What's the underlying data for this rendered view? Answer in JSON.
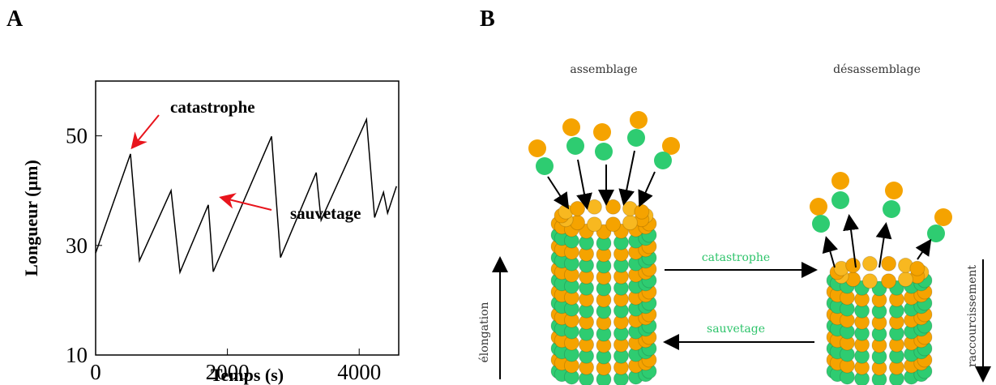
{
  "panel_labels": [
    "A",
    "B"
  ],
  "chart_data": {
    "type": "line",
    "x": [
      0,
      529,
      665,
      1145,
      1280,
      1710,
      1785,
      2670,
      2806,
      3348,
      3422,
      4111,
      4234,
      4369,
      4431,
      4566
    ],
    "values": [
      28.6,
      46.7,
      27.2,
      40,
      25.1,
      37.4,
      25.2,
      49.9,
      27.8,
      43.3,
      34.6,
      53,
      35.1,
      39.7,
      35.9,
      40.8
    ],
    "color": "#000000",
    "xlim": [
      0,
      4600
    ],
    "xticks": [
      0,
      2000,
      4000
    ],
    "ylim": [
      10,
      60
    ],
    "yticks": [
      10,
      30,
      50
    ],
    "xlabel": "Temps (s)",
    "ylabel": "Longueur (µm)",
    "annotations": [
      "catastrophe",
      "sauvetage"
    ],
    "annotation_color": "#e8141c"
  },
  "diagram": {
    "assembly": "assemblage",
    "disassembly": "désassemblage",
    "catastrophe": "catastrophe",
    "rescue": "sauvetage",
    "elongation": "élongation",
    "shortening": "raccourcissement"
  }
}
